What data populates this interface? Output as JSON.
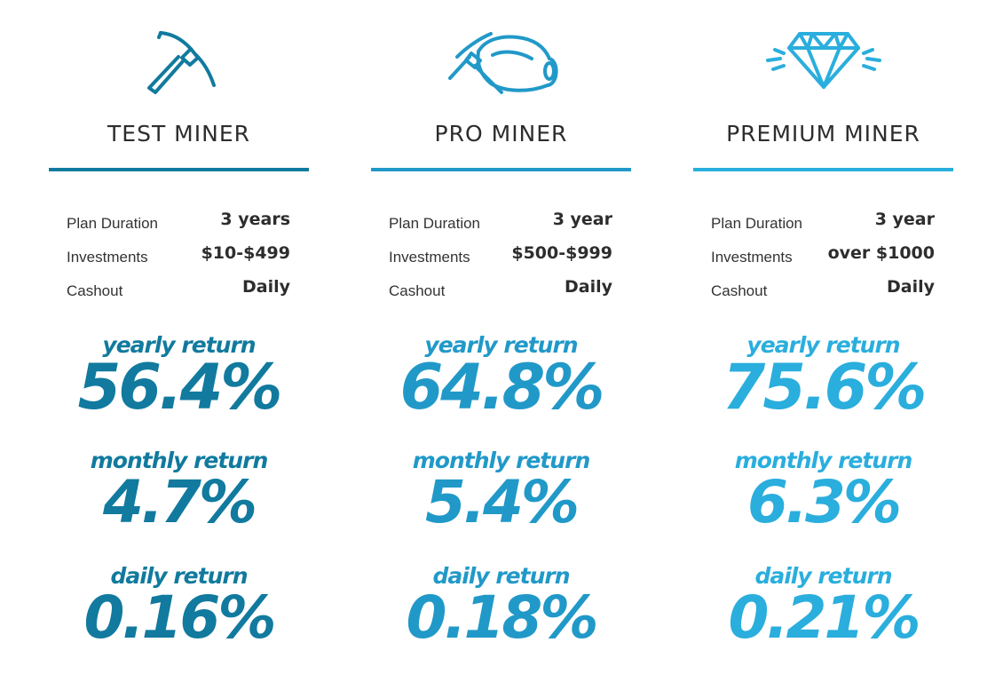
{
  "plans": [
    {
      "key": "test",
      "title": "TEST MINER",
      "icon": "pickaxe-icon",
      "color": "#117a9e",
      "details": [
        {
          "label": "Plan Duration",
          "value": "3 years"
        },
        {
          "label": "Investments",
          "value": "$10-$499"
        },
        {
          "label": "Cashout",
          "value": "Daily"
        }
      ],
      "returns": [
        {
          "label": "yearly return",
          "value": "56.4%"
        },
        {
          "label": "monthly return",
          "value": "4.7%"
        },
        {
          "label": "daily return",
          "value": "0.16%"
        }
      ]
    },
    {
      "key": "pro",
      "title": "PRO MINER",
      "icon": "pickaxe-helmet-icon",
      "color": "#2199c8",
      "details": [
        {
          "label": "Plan Duration",
          "value": "3 year"
        },
        {
          "label": "Investments",
          "value": "$500-$999"
        },
        {
          "label": "Cashout",
          "value": "Daily"
        }
      ],
      "returns": [
        {
          "label": "yearly return",
          "value": "64.8%"
        },
        {
          "label": "monthly return",
          "value": "5.4%"
        },
        {
          "label": "daily return",
          "value": "0.18%"
        }
      ]
    },
    {
      "key": "premium",
      "title": "PREMIUM MINER",
      "icon": "diamond-icon",
      "color": "#2aaedd",
      "details": [
        {
          "label": "Plan Duration",
          "value": "3 year"
        },
        {
          "label": "Investments",
          "value": "over $1000"
        },
        {
          "label": "Cashout",
          "value": "Daily"
        }
      ],
      "returns": [
        {
          "label": "yearly return",
          "value": "75.6%"
        },
        {
          "label": "monthly return",
          "value": "6.3%"
        },
        {
          "label": "daily return",
          "value": "0.21%"
        }
      ]
    }
  ]
}
